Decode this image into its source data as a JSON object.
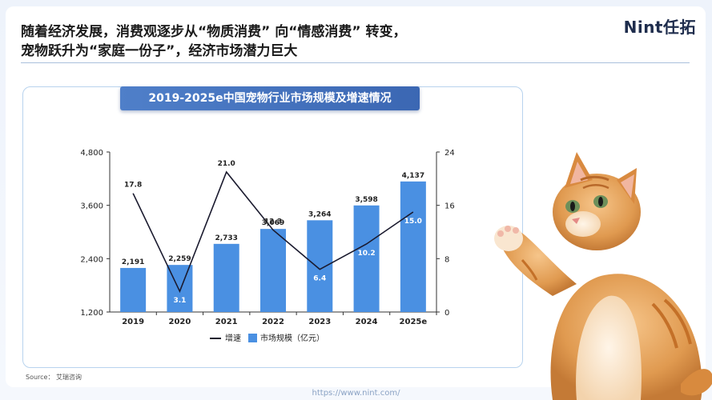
{
  "header": {
    "title_line1": "随着经济发展，消费观逐步从“物质消费” 向“情感消费” 转变，",
    "title_line2": "宠物跃升为“家庭一份子”，经济市场潜力巨大",
    "logo": "Nint任拓"
  },
  "chart_data": {
    "type": "bar+line",
    "title": "2019-2025e中国宠物行业市场规模及增速情况",
    "categories": [
      "2019",
      "2020",
      "2021",
      "2022",
      "2023",
      "2024",
      "2025e"
    ],
    "series": [
      {
        "name": "市场规模（亿元）",
        "type": "bar",
        "axis": "left",
        "values": [
          2191,
          2259,
          2733,
          3069,
          3264,
          3598,
          4137
        ],
        "labels": [
          "2,191",
          "2,259",
          "2,733",
          "3,069",
          "3,264",
          "3,598",
          "4,137"
        ],
        "color": "#4a90e2"
      },
      {
        "name": "增速",
        "type": "line",
        "axis": "right",
        "values": [
          17.8,
          3.1,
          21.0,
          12.3,
          6.4,
          10.2,
          15.0
        ],
        "labels": [
          "17.8",
          "3.1",
          "21.0",
          "12.3",
          "6.4",
          "10.2",
          "15.0"
        ],
        "color": "#1a1a2e"
      }
    ],
    "left_axis": {
      "min": 1200,
      "max": 4800,
      "ticks": [
        "1,200",
        "2,400",
        "3,600",
        "4,800"
      ],
      "tick_values": [
        1200,
        2400,
        3600,
        4800
      ]
    },
    "right_axis": {
      "min": 0,
      "max": 24,
      "ticks": [
        "0",
        "8",
        "16",
        "24"
      ],
      "tick_values": [
        0,
        8,
        16,
        24
      ]
    },
    "legend": {
      "placement": "bottom",
      "items": [
        "增速",
        "市场规模（亿元）"
      ]
    },
    "grid": false
  },
  "source": "Source： 艾瑞咨询",
  "footer": {
    "url": "https://www.nint.com/"
  },
  "illustration": {
    "icon": "kitten-icon"
  }
}
